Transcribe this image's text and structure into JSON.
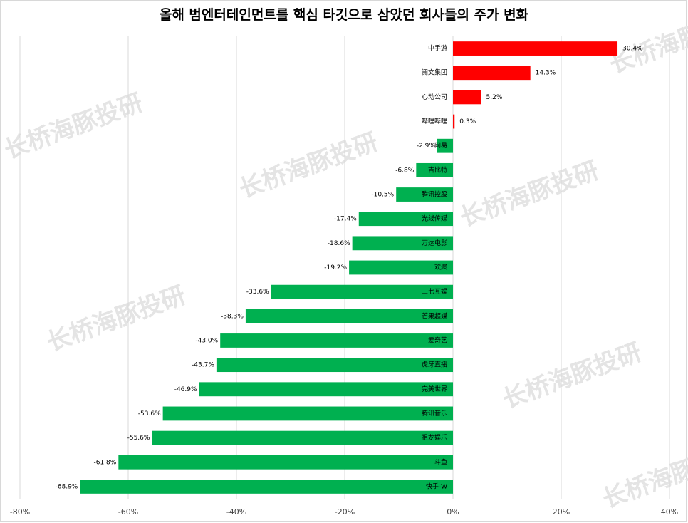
{
  "title": "올해 범엔터테인먼트를 핵심 타깃으로 삼았던 회사들의 주가 변화",
  "watermark": "长桥海豚投研",
  "colors": {
    "positive": "#ff0000",
    "negative": "#00b050",
    "grid": "#d9d9d9"
  },
  "chart_data": {
    "type": "bar",
    "orientation": "horizontal",
    "title": "올해 범엔터테인먼트를 핵심 타깃으로 삼았던 회사들의 주가 변화",
    "categories": [
      "中手游",
      "阅文集团",
      "心动公司",
      "哔哩哔哩",
      "网易",
      "吉比特",
      "腾讯控股",
      "光线传媒",
      "万达电影",
      "欢聚",
      "三七互娱",
      "芒果超媒",
      "爱奇艺",
      "虎牙直播",
      "完美世界",
      "腾讯音乐",
      "祖龙娱乐",
      "斗鱼",
      "快手-W"
    ],
    "values": [
      30.4,
      14.3,
      5.2,
      0.3,
      -2.9,
      -6.8,
      -10.5,
      -17.4,
      -18.6,
      -19.2,
      -33.6,
      -38.3,
      -43.0,
      -43.7,
      -46.9,
      -53.6,
      -55.6,
      -61.8,
      -68.9
    ],
    "value_labels": [
      "30.4%",
      "14.3%",
      "5.2%",
      "0.3%",
      "-2.9%",
      "-6.8%",
      "-10.5%",
      "-17.4%",
      "-18.6%",
      "-19.2%",
      "-33.6%",
      "-38.3%",
      "-43.0%",
      "-43.7%",
      "-46.9%",
      "-53.6%",
      "-55.6%",
      "-61.8%",
      "-68.9%"
    ],
    "xlim": [
      -80,
      40
    ],
    "ticks": [
      -80,
      -60,
      -40,
      -20,
      0,
      20,
      40
    ],
    "tick_labels": [
      "-80%",
      "-60%",
      "-40%",
      "-20%",
      "0%",
      "20%",
      "40%"
    ],
    "grid": true
  }
}
